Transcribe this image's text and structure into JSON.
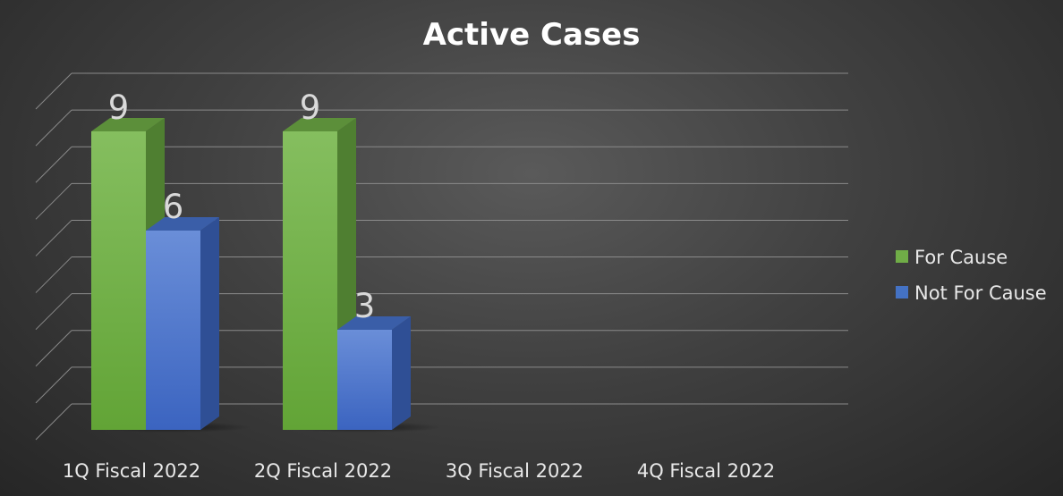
{
  "chart_data": {
    "type": "bar",
    "title": "Active Cases",
    "categories": [
      "1Q Fiscal 2022",
      "2Q Fiscal 2022",
      "3Q Fiscal 2022",
      "4Q Fiscal 2022"
    ],
    "series": [
      {
        "name": "For Cause",
        "values": [
          9,
          9,
          null,
          null
        ],
        "color": "#70ad47"
      },
      {
        "name": "Not For Cause",
        "values": [
          6,
          3,
          null,
          null
        ],
        "color": "#4472c4"
      }
    ],
    "ylim": [
      0,
      10
    ],
    "grid": true,
    "style_3d": true,
    "legend_position": "right"
  }
}
